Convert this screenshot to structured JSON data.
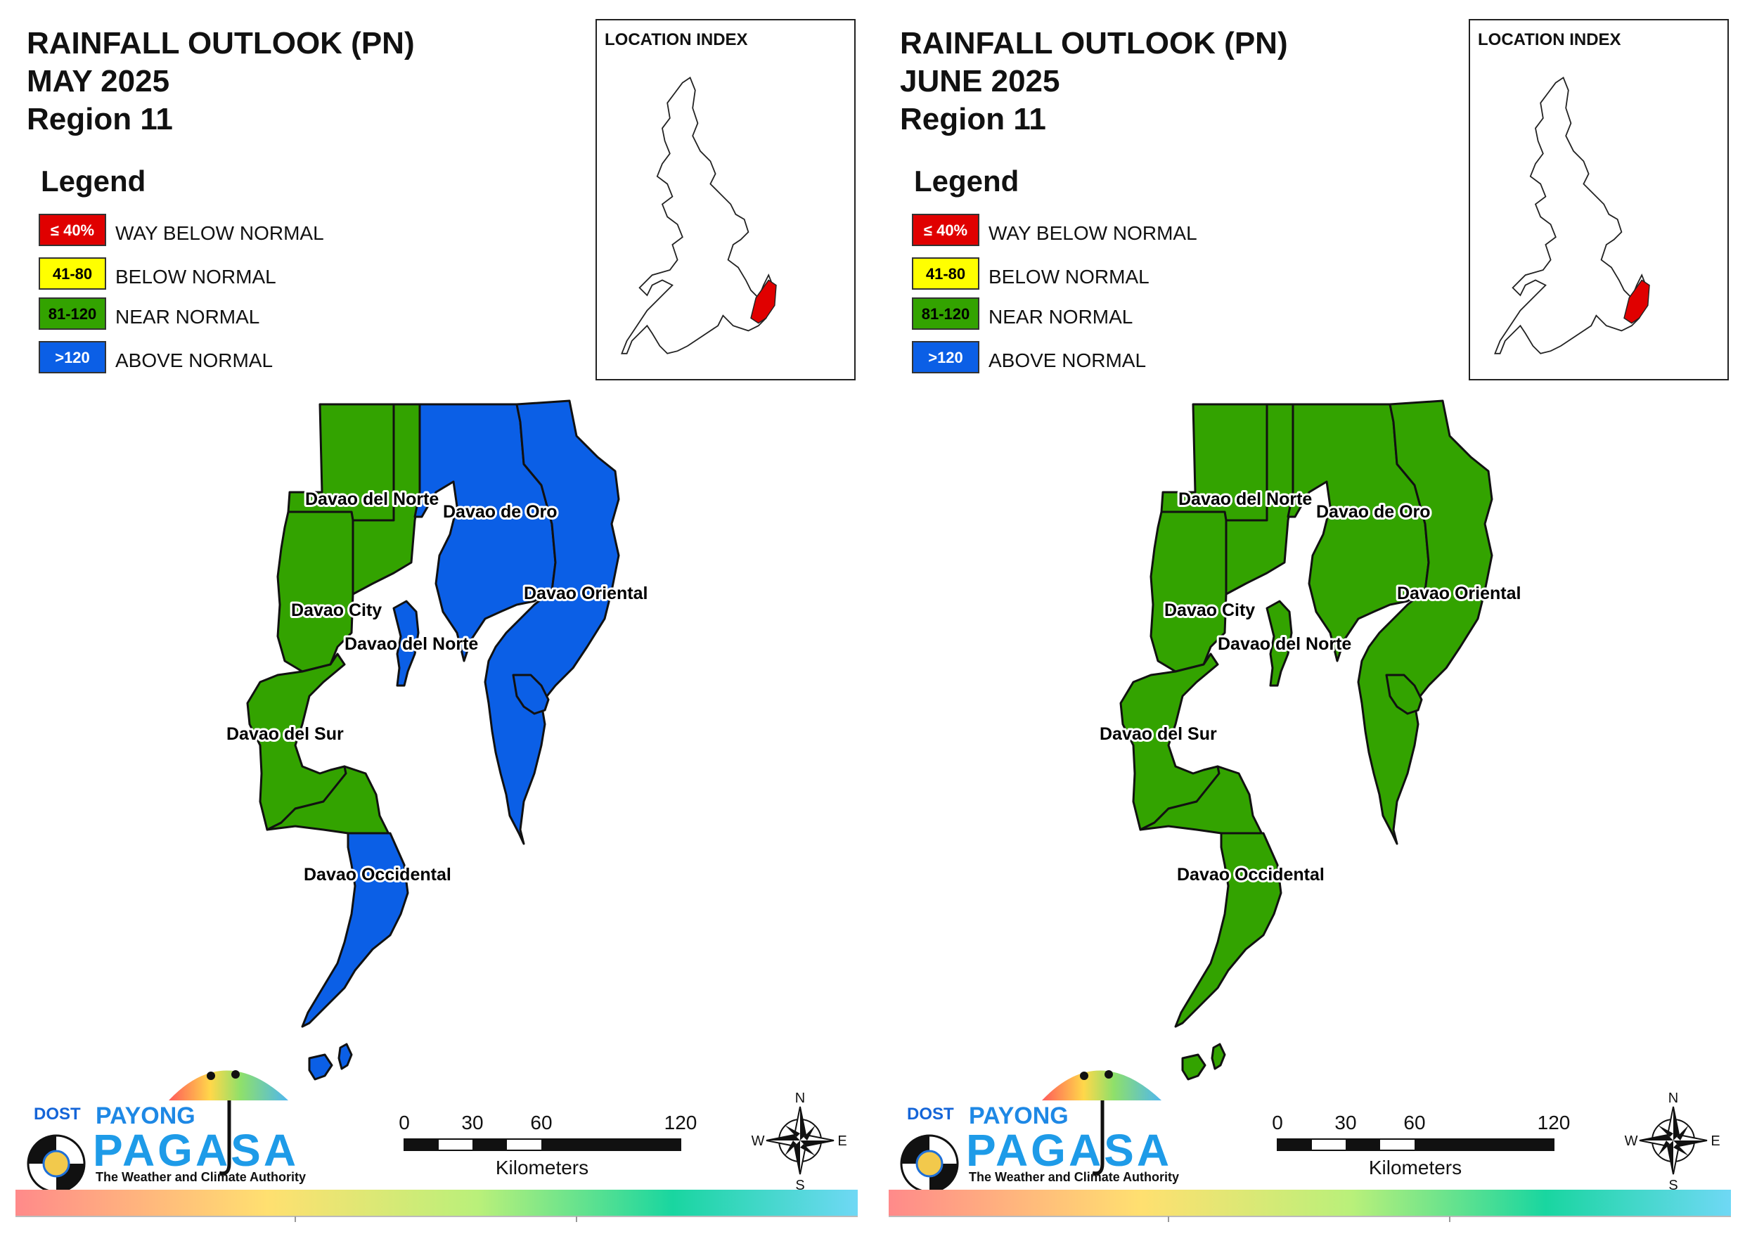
{
  "colors": {
    "way_below": "#e00000",
    "below": "#ffff00",
    "near": "#33a300",
    "above": "#0b5fe6",
    "outline": "#111111"
  },
  "panels": [
    {
      "title_line1": "RAINFALL OUTLOOK (PN)",
      "title_line2": "MAY 2025",
      "title_line3": "Region 11",
      "categories": {
        "davao_del_norte_west": "near",
        "davao_de_oro_west": "near",
        "davao_de_oro_east": "above",
        "davao_oriental": "above",
        "davao_city": "near",
        "davao_del_sur": "near",
        "davao_occidental_north": "near",
        "davao_occidental_south": "above",
        "islands": "above"
      }
    },
    {
      "title_line1": "RAINFALL OUTLOOK (PN)",
      "title_line2": "JUNE 2025",
      "title_line3": "Region 11",
      "categories": {
        "davao_del_norte_west": "near",
        "davao_de_oro_west": "near",
        "davao_de_oro_east": "near",
        "davao_oriental": "near",
        "davao_city": "near",
        "davao_del_sur": "near",
        "davao_occidental_north": "near",
        "davao_occidental_south": "near",
        "islands": "near"
      }
    }
  ],
  "legend": {
    "title": "Legend",
    "items": [
      {
        "code": "way_below",
        "box": "≤ 40%",
        "label": "WAY BELOW NORMAL"
      },
      {
        "code": "below",
        "box": "41-80",
        "label": "BELOW NORMAL"
      },
      {
        "code": "near",
        "box": "81-120",
        "label": "NEAR NORMAL"
      },
      {
        "code": "above",
        "box": ">120",
        "label": "ABOVE NORMAL"
      }
    ]
  },
  "location_index": {
    "title": "LOCATION INDEX"
  },
  "map_labels": {
    "davao_del_norte_top": "Davao del Norte",
    "davao_de_oro": "Davao de Oro",
    "davao_oriental": "Davao Oriental",
    "davao_city": "Davao City",
    "davao_del_norte_island": "Davao del Norte",
    "davao_del_sur": "Davao del Sur",
    "davao_occidental": "Davao Occidental"
  },
  "scale_bar": {
    "ticks": [
      "0",
      "30",
      "60",
      "120"
    ],
    "unit": "Kilometers"
  },
  "compass": {
    "n": "N",
    "s": "S",
    "e": "E",
    "w": "W"
  },
  "logo": {
    "dost": "DOST",
    "payong": "PAYONG",
    "pagasa": "PAGASA",
    "tagline": "The Weather and Climate Authority"
  }
}
